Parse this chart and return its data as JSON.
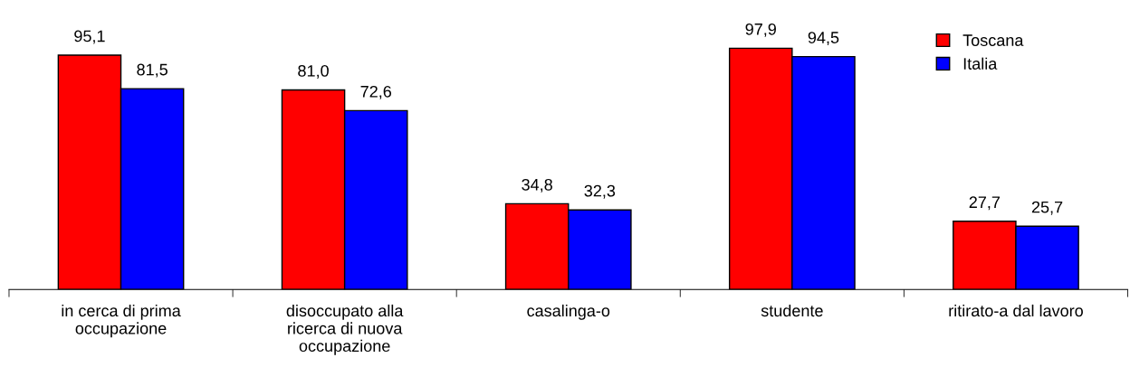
{
  "chart_data": {
    "type": "bar",
    "categories": [
      "in cerca di prima\noccupazione",
      "disoccupato alla\nricerca di nuova\noccupazione",
      "casalinga-o",
      "studente",
      "ritirato-a dal lavoro"
    ],
    "series": [
      {
        "name": "Toscana",
        "color": "#ff0000",
        "values": [
          95.1,
          81.0,
          34.8,
          97.9,
          27.7
        ],
        "value_labels": [
          "95,1",
          "81,0",
          "34,8",
          "97,9",
          "27,7"
        ]
      },
      {
        "name": "Italia",
        "color": "#0000ff",
        "values": [
          81.5,
          72.6,
          32.3,
          94.5,
          25.7
        ],
        "value_labels": [
          "81,5",
          "72,6",
          "32,3",
          "94,5",
          "25,7"
        ]
      }
    ],
    "legend": "top right",
    "grid": false,
    "tick_labels": "x"
  }
}
